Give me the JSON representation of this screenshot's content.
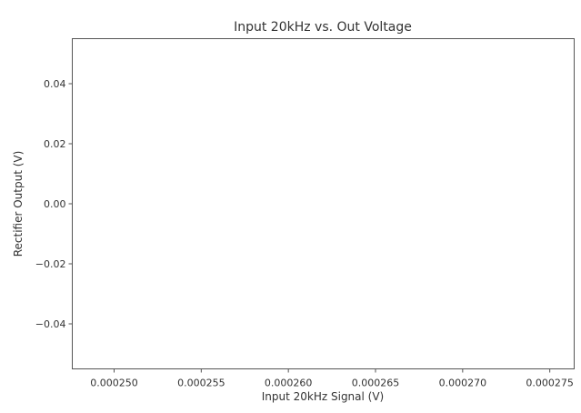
{
  "chart_data": {
    "type": "scatter",
    "title": "Input 20kHz vs. Out Voltage",
    "xlabel": "Input 20kHz Signal (V)",
    "ylabel": "Rectifier Output (V)",
    "xlim": [
      0.0002476,
      0.0002764
    ],
    "ylim": [
      -0.055,
      0.055
    ],
    "xticks": [
      0.00025,
      0.000255,
      0.00026,
      0.000265,
      0.00027,
      0.000275
    ],
    "xtick_labels": [
      "0.000250",
      "0.000255",
      "0.000260",
      "0.000265",
      "0.000270",
      "0.000275"
    ],
    "yticks": [
      0.04,
      0.02,
      0.0,
      -0.02,
      -0.04
    ],
    "ytick_labels": [
      "0.04",
      "0.02",
      "0.00",
      "−0.02",
      "−0.04"
    ],
    "grid": false,
    "series": []
  }
}
